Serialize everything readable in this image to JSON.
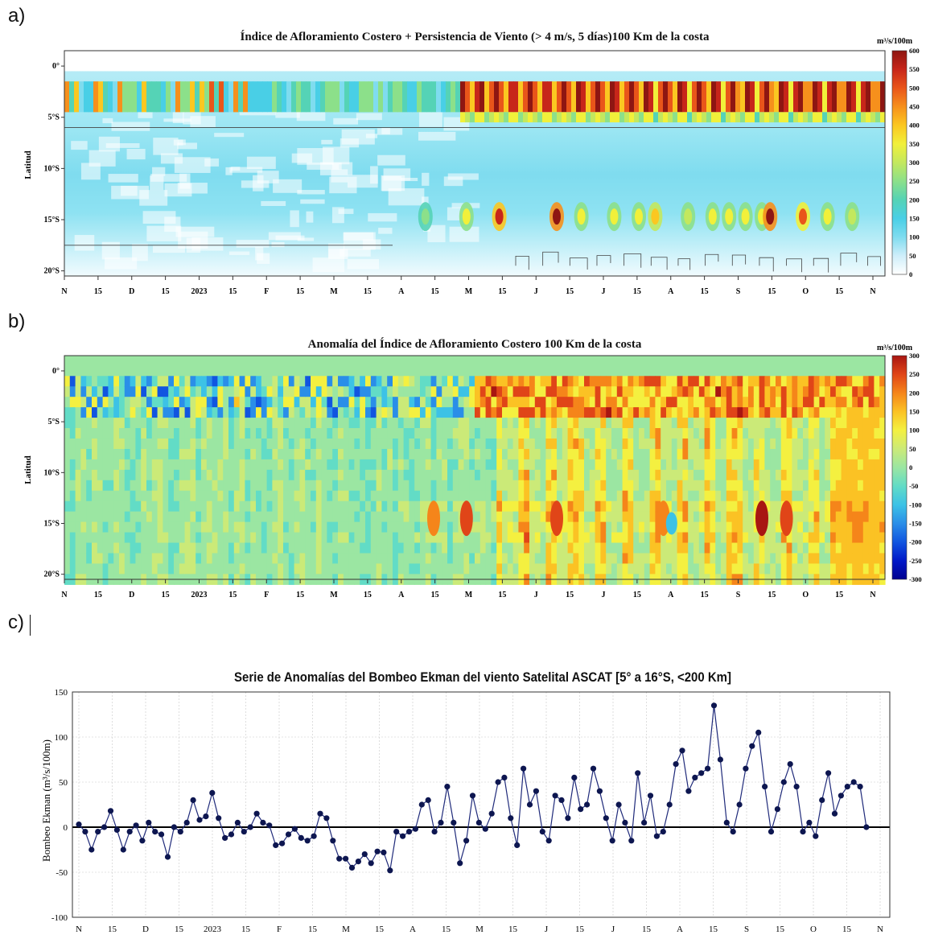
{
  "panels": {
    "a": {
      "label": "a)"
    },
    "b": {
      "label": "b)"
    },
    "c": {
      "label": "c)"
    }
  },
  "chart_data": [
    {
      "type": "heatmap",
      "title": "Índice de Afloramiento Costero + Persistencia de Viento (> 4 m/s, 5 días)100 Km de la costa",
      "ylabel": "Latitud",
      "y_ticks": [
        "0°",
        "5°S",
        "10°S",
        "15°S",
        "20°S"
      ],
      "x_ticks": [
        "N",
        "15",
        "D",
        "15",
        "2023",
        "15",
        "F",
        "15",
        "M",
        "15",
        "A",
        "15",
        "M",
        "15",
        "J",
        "15",
        "J",
        "15",
        "A",
        "15",
        "S",
        "15",
        "O",
        "15",
        "N"
      ],
      "colorbar_units": "m³/s/100m",
      "colorbar_ticks": [
        "600",
        "550",
        "500",
        "450",
        "400",
        "350",
        "300",
        "250",
        "200",
        "150",
        "100",
        "50",
        "0"
      ],
      "colorbar_range": [
        0,
        600
      ],
      "colormap": [
        "#ffffff",
        "#cfeefa",
        "#7fdcef",
        "#49cfe6",
        "#55d3b6",
        "#8ce08a",
        "#c3e85e",
        "#f1f03a",
        "#fbc721",
        "#f6901c",
        "#e9551a",
        "#c7261a",
        "#8e1612"
      ],
      "hotspots_lat": [
        "4°S",
        "15°S"
      ]
    },
    {
      "type": "heatmap",
      "title": "Anomalía del Índice de Afloramiento Costero 100 Km de la costa",
      "ylabel": "Latitud",
      "y_ticks": [
        "0°",
        "5°S",
        "10°S",
        "15°S",
        "20°S"
      ],
      "x_ticks": [
        "N",
        "15",
        "D",
        "15",
        "2023",
        "15",
        "F",
        "15",
        "M",
        "15",
        "A",
        "15",
        "M",
        "15",
        "J",
        "15",
        "J",
        "15",
        "A",
        "15",
        "S",
        "15",
        "O",
        "15",
        "N"
      ],
      "colorbar_units": "m³/s/100m",
      "colorbar_ticks": [
        "300",
        "250",
        "200",
        "150",
        "100",
        "50",
        "0",
        "-50",
        "-100",
        "-150",
        "-200",
        "-250",
        "-300"
      ],
      "colorbar_range": [
        -300,
        300
      ],
      "colormap": [
        "#00008f",
        "#0018c8",
        "#1155e0",
        "#2a8ee8",
        "#3cc2e6",
        "#62dcc6",
        "#9be6a2",
        "#cbea78",
        "#f4f040",
        "#fbc224",
        "#f5851a",
        "#e04518",
        "#a81612"
      ]
    },
    {
      "type": "line",
      "title": "Serie de Anomalías del Bombeo Ekman del viento Satelital ASCAT [5° a 16°S, <200 Km]",
      "ylabel": "Bombeo Ekman (m³/s/100m)",
      "xlabel": "",
      "ylim": [
        -100,
        150
      ],
      "y_ticks": [
        "150",
        "100",
        "50",
        "0",
        "-50",
        "-100"
      ],
      "x_ticks": [
        "N",
        "15",
        "D",
        "15",
        "2023",
        "15",
        "F",
        "15",
        "M",
        "15",
        "A",
        "15",
        "M",
        "15",
        "J",
        "15",
        "J",
        "15",
        "A",
        "15",
        "S",
        "15",
        "O",
        "15",
        "N"
      ],
      "series_color": "#1f2a7a",
      "marker_color": "#0d1650",
      "grid": true,
      "x_days": [
        0,
        3,
        6,
        9,
        12,
        15,
        18,
        21,
        24,
        27,
        30,
        33,
        36,
        39,
        42,
        45,
        48,
        51,
        54,
        57,
        60,
        63,
        66,
        69,
        72,
        75,
        78,
        81,
        84,
        87,
        90,
        93,
        96,
        99,
        102,
        105,
        108,
        111,
        114,
        117,
        120,
        123,
        126,
        129,
        132,
        135,
        138,
        141,
        144,
        147,
        150,
        153,
        156,
        159,
        162,
        165,
        168,
        171,
        174,
        177,
        180,
        183,
        186,
        189,
        192,
        195,
        198,
        201,
        204,
        207,
        210,
        213,
        216,
        219,
        222,
        225,
        228,
        231,
        234,
        237,
        240,
        243,
        246,
        249,
        252,
        255,
        258,
        261,
        264,
        267,
        270,
        273,
        276,
        279,
        282,
        285,
        288,
        291,
        294,
        297,
        300,
        303,
        306,
        309,
        312,
        315,
        318,
        321,
        324,
        327,
        330,
        333,
        336,
        339,
        342,
        345,
        348,
        351,
        354,
        357,
        360,
        363,
        366,
        369,
        372
      ],
      "values": [
        3,
        -5,
        -25,
        -5,
        0,
        18,
        -3,
        -25,
        -5,
        2,
        -15,
        5,
        -5,
        -8,
        -33,
        0,
        -5,
        5,
        30,
        8,
        12,
        38,
        10,
        -12,
        -8,
        5,
        -5,
        0,
        15,
        5,
        2,
        -20,
        -18,
        -8,
        -2,
        -12,
        -15,
        -10,
        15,
        10,
        -15,
        -35,
        -35,
        -45,
        -38,
        -30,
        -40,
        -27,
        -28,
        -48,
        -5,
        -10,
        -5,
        -2,
        25,
        30,
        -5,
        5,
        45,
        5,
        -40,
        -15,
        35,
        5,
        -2,
        15,
        50,
        55,
        10,
        -20,
        65,
        25,
        40,
        -5,
        -15,
        35,
        30,
        10,
        55,
        20,
        25,
        65,
        40,
        10,
        -15,
        25,
        5,
        -15,
        60,
        5,
        35,
        -10,
        -5,
        25,
        70,
        85,
        40,
        55,
        60,
        65,
        135,
        75,
        5,
        -5,
        25,
        65,
        90,
        105,
        45,
        -5,
        20,
        50,
        70,
        45,
        -5,
        5,
        -10,
        30,
        60,
        15,
        35,
        45,
        50,
        45,
        0
      ]
    }
  ]
}
